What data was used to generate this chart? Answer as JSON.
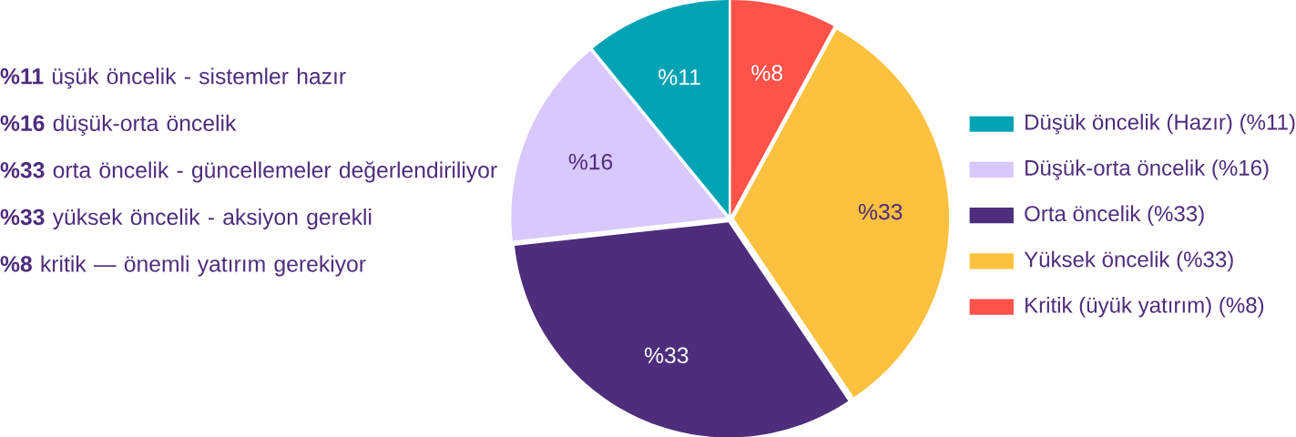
{
  "chart_data": {
    "type": "pie",
    "categories": [
      "Düşük öncelik (Hazır) (%11)",
      "Düşük-orta öncelik (%16)",
      "Orta öncelik (%33)",
      "Yüksek öncelik (%33)",
      "Kritik (üyük yatırım) (%8)"
    ],
    "values": [
      11,
      16,
      33,
      33,
      8
    ],
    "colors": [
      "#00a3b4",
      "#d9c8fb",
      "#4e2d7c",
      "#fcc13e",
      "#ff5249"
    ],
    "value_labels": [
      "%11",
      "%16",
      "%33",
      "%33",
      "%8"
    ],
    "legend": "right",
    "annotations": [
      "**%11** üşük öncelik - sistemler hazır",
      "**%16** düşük-orta öncelik",
      "**%33** orta öncelik - güncellemeler değerlendiriliyor",
      "**%33** yüksek öncelik - aksiyon gerekli",
      "**%8** kritik — önemli yatırım gerekiyor"
    ]
  }
}
